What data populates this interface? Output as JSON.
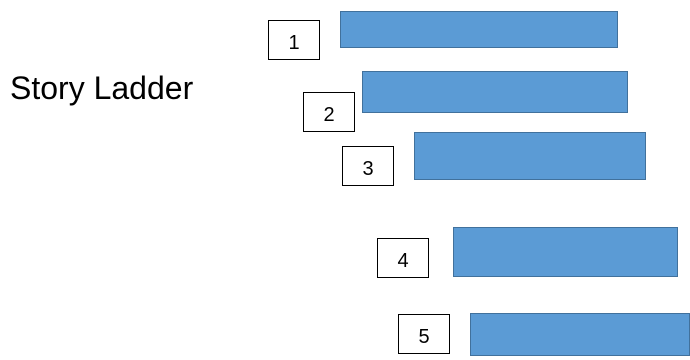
{
  "title": "Story Ladder",
  "steps": [
    {
      "number": "1"
    },
    {
      "number": "2"
    },
    {
      "number": "3"
    },
    {
      "number": "4"
    },
    {
      "number": "5"
    }
  ],
  "colors": {
    "rung_fill": "#5b9bd5",
    "rung_border": "#41719c",
    "box_border": "#000000",
    "text": "#000000"
  }
}
